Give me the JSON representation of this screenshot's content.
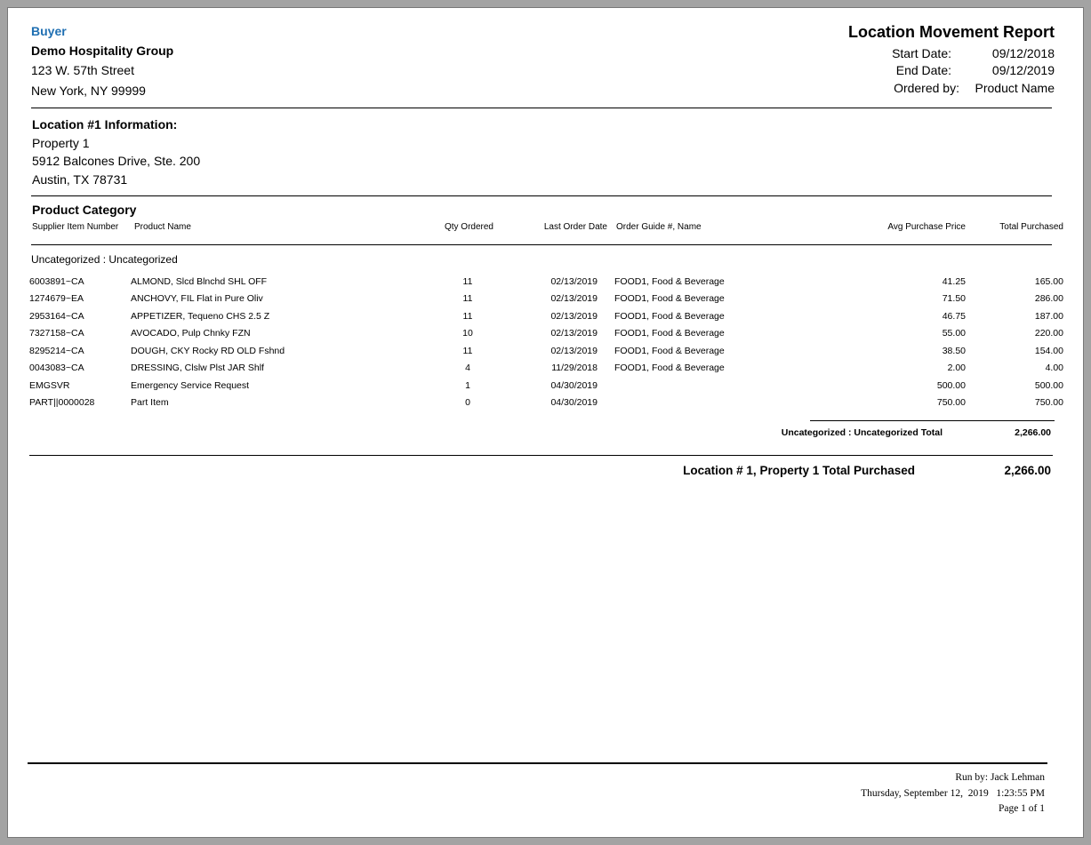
{
  "buyer": {
    "label": "Buyer",
    "company": "Demo Hospitality Group",
    "address1": "123 W. 57th Street",
    "address2": "New York, NY 99999"
  },
  "report": {
    "title": "Location Movement Report",
    "start_label": "Start Date:",
    "start_value": "09/12/2018",
    "end_label": "End Date:",
    "end_value": "09/12/2019",
    "ordered_label": "Ordered by:",
    "ordered_value": "Product Name"
  },
  "location": {
    "heading": "Location #1 Information:",
    "name": "Property 1",
    "address1": "5912 Balcones Drive, Ste. 200",
    "address2": "Austin, TX 78731"
  },
  "table": {
    "section": "Product Category",
    "headers": [
      "Supplier Item Number",
      "Product Name",
      "Qty Ordered",
      "Last Order Date",
      "Order Guide #, Name",
      "Avg Purchase Price",
      "Total Purchased"
    ],
    "group": "Uncategorized : Uncategorized",
    "rows": [
      [
        "6003891~CA",
        "ALMOND, Slcd Blnchd SHL OFF",
        "11",
        "02/13/2019",
        "FOOD1, Food & Beverage",
        "41.25",
        "165.00"
      ],
      [
        "1274679~EA",
        "ANCHOVY, FIL Flat in Pure Oliv",
        "11",
        "02/13/2019",
        "FOOD1, Food & Beverage",
        "71.50",
        "286.00"
      ],
      [
        "2953164~CA",
        "APPETIZER, Tequeno CHS 2.5 Z",
        "11",
        "02/13/2019",
        "FOOD1, Food & Beverage",
        "46.75",
        "187.00"
      ],
      [
        "7327158~CA",
        "AVOCADO, Pulp Chnky FZN",
        "10",
        "02/13/2019",
        "FOOD1, Food & Beverage",
        "55.00",
        "220.00"
      ],
      [
        "8295214~CA",
        "DOUGH, CKY Rocky RD OLD Fshnd",
        "11",
        "02/13/2019",
        "FOOD1, Food & Beverage",
        "38.50",
        "154.00"
      ],
      [
        "0043083~CA",
        "DRESSING, Clslw Plst JAR Shlf",
        "4",
        "11/29/2018",
        "FOOD1, Food & Beverage",
        "2.00",
        "4.00"
      ],
      [
        "EMGSVR",
        "Emergency Service Request",
        "1",
        "04/30/2019",
        "",
        "500.00",
        "500.00"
      ],
      [
        "PART||0000028",
        "Part Item",
        "0",
        "04/30/2019",
        "",
        "750.00",
        "750.00"
      ]
    ],
    "subtotal_label": "Uncategorized : Uncategorized Total",
    "subtotal_value": "2,266.00",
    "grand_label": "Location # 1, Property 1 Total Purchased",
    "grand_value": "2,266.00"
  },
  "footer": {
    "run_by": "Run by: Jack Lehman",
    "datetime": "Thursday, September 12,  2019   1:23:55 PM",
    "page": "Page 1 of 1"
  }
}
